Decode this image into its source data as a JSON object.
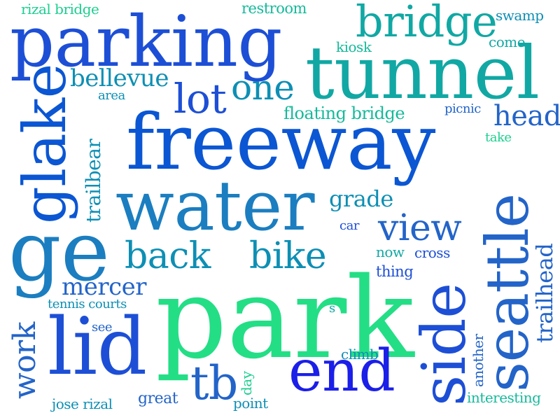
{
  "words": {
    "park": "park",
    "freeway": "freeway",
    "water": "water",
    "tunnel": "tunnel",
    "parking": "parking",
    "seattle": "seattle",
    "side": "side",
    "lid": "lid",
    "end": "end",
    "ge": "ge",
    "glake": "glake",
    "bridge": "bridge",
    "lot": "lot",
    "one": "one",
    "back": "back",
    "bike": "bike",
    "view": "view",
    "tb": "tb",
    "work": "work",
    "mercer": "mercer",
    "head": "head",
    "trailhead": "trailhead",
    "trailbear": "trailbear",
    "bellevue": "bellevue",
    "floating_bridge": "floating bridge",
    "grade": "grade",
    "rizal_bridge": "rizal bridge",
    "restroom": "restroom",
    "swamp": "swamp",
    "come": "come",
    "kiosk": "kiosk",
    "area": "area",
    "picnic": "picnic",
    "take": "take",
    "car": "car",
    "now": "now",
    "cross": "cross",
    "thing": "thing",
    "tennis_courts": "tennis courts",
    "s": "s",
    "see": "see",
    "climb": "climb",
    "day": "day",
    "great": "great",
    "point": "point",
    "jose_rizal": "jose rizal",
    "another": "another",
    "interesting": "interesting"
  }
}
